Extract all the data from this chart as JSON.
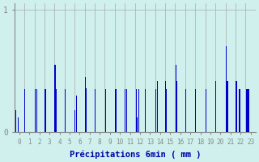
{
  "xlabel": "Précipitations 6min ( mm )",
  "background_color": "#cff0ec",
  "bar_color": "#0000cc",
  "grid_color": "#aaaaaa",
  "ylim": [
    0,
    1.05
  ],
  "yticks": [
    0,
    1
  ],
  "ytick_labels": [
    "0",
    "1"
  ],
  "xlim": [
    -0.5,
    23.5
  ],
  "xticks": [
    0,
    1,
    2,
    3,
    4,
    5,
    6,
    7,
    8,
    9,
    10,
    11,
    12,
    13,
    14,
    15,
    16,
    17,
    18,
    19,
    20,
    21,
    22,
    23
  ],
  "bar_color_hex": "#0000cc",
  "hours": [
    0,
    1,
    2,
    3,
    4,
    5,
    6,
    7,
    8,
    9,
    10,
    11,
    12,
    13,
    14,
    15,
    16,
    17,
    18,
    19,
    20,
    21,
    22,
    23
  ],
  "bar_groups": [
    [
      [
        1,
        0.18
      ],
      [
        3,
        0.12
      ]
    ],
    [
      [
        0,
        0.35
      ]
    ],
    [
      [
        0,
        0.35
      ],
      [
        2,
        0.35
      ]
    ],
    [
      [
        0,
        0.35
      ],
      [
        1,
        0.35
      ]
    ],
    [
      [
        0,
        0.55
      ],
      [
        1,
        0.35
      ]
    ],
    [
      [
        0,
        0.35
      ]
    ],
    [
      [
        0,
        0.18
      ],
      [
        1,
        0.3
      ]
    ],
    [
      [
        0,
        0.45
      ],
      [
        1,
        0.36
      ]
    ],
    [
      [
        0,
        0.35
      ]
    ],
    [
      [
        0,
        0.35
      ]
    ],
    [
      [
        0,
        0.35
      ],
      [
        1,
        0.35
      ]
    ],
    [
      [
        0,
        0.35
      ],
      [
        1,
        0.35
      ]
    ],
    [
      [
        1,
        0.35
      ],
      [
        2,
        0.12
      ],
      [
        3,
        0.35
      ]
    ],
    [
      [
        0,
        0.35
      ]
    ],
    [
      [
        0,
        0.35
      ],
      [
        2,
        0.42
      ]
    ],
    [
      [
        0,
        0.42
      ],
      [
        1,
        0.35
      ]
    ],
    [
      [
        0,
        0.55
      ],
      [
        1,
        0.42
      ]
    ],
    [
      [
        0,
        0.35
      ]
    ],
    [
      [
        0,
        0.35
      ]
    ],
    [
      [
        0,
        0.35
      ]
    ],
    [
      [
        0,
        0.42
      ]
    ],
    [
      [
        0,
        0.7
      ],
      [
        1,
        0.42
      ],
      [
        2,
        0.42
      ]
    ],
    [
      [
        0,
        0.42
      ],
      [
        1,
        0.42
      ],
      [
        3,
        0.35
      ],
      [
        4,
        0.35
      ]
    ],
    [
      [
        0,
        0.35
      ],
      [
        1,
        0.35
      ],
      [
        2,
        0.35
      ],
      [
        3,
        0.35
      ]
    ]
  ]
}
